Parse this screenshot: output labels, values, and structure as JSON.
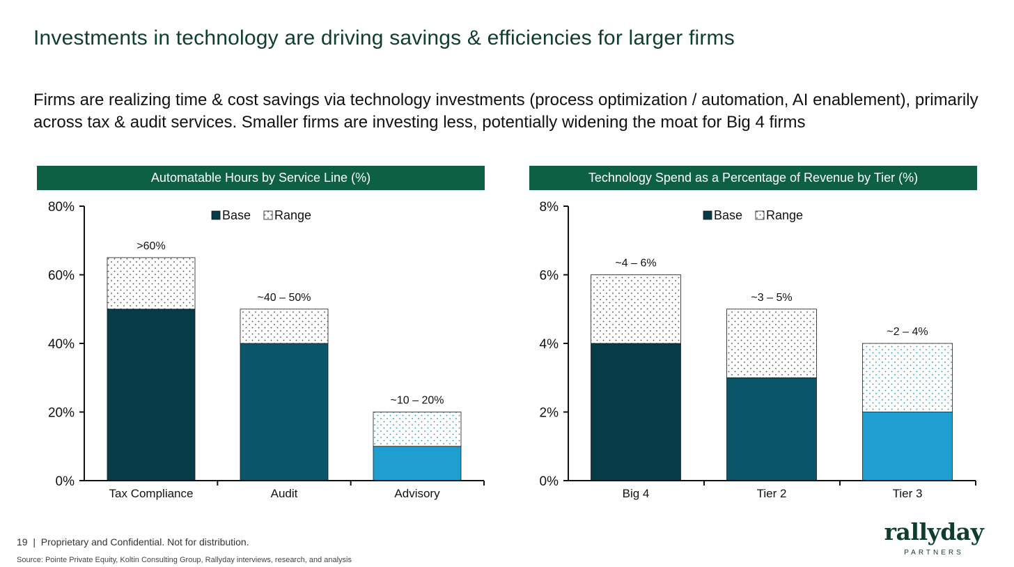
{
  "title": "Investments in technology are driving savings & efficiencies for larger firms",
  "subtitle": "Firms are realizing time & cost savings via technology investments (process optimization / automation, AI enablement), primarily across tax & audit services. Smaller firms are investing less, potentially widening the moat for Big 4 firms",
  "footer": {
    "page_number": "19",
    "confidential": "Proprietary and Confidential. Not for distribution.",
    "source": "Source: Pointe Private Equity, Koltin Consulting Group, Rallyday interviews, research, and analysis"
  },
  "logo": {
    "name": "rallyday",
    "tagline": "PARTNERS"
  },
  "colors": {
    "header_bg": "#0e6045",
    "title": "#0f3d2e",
    "dark": "#063b47",
    "mid": "#0b5569",
    "light": "#1e9fd0"
  },
  "chart_data": [
    {
      "type": "bar",
      "stacked": true,
      "title": "Automatable Hours by Service Line (%)",
      "categories": [
        "Tax Compliance",
        "Audit",
        "Advisory"
      ],
      "series": [
        {
          "name": "Base",
          "values": [
            50,
            40,
            10
          ]
        },
        {
          "name": "Range",
          "values": [
            15,
            10,
            10
          ]
        }
      ],
      "bar_labels": [
        ">60%",
        "~40 – 50%",
        "~10 – 20%"
      ],
      "ylim": [
        0,
        80
      ],
      "yticks": [
        0,
        20,
        40,
        60,
        80
      ],
      "tick_suffix": "%",
      "legend": [
        "Base",
        "Range"
      ],
      "legend_position": "top-center",
      "grid": false
    },
    {
      "type": "bar",
      "stacked": true,
      "title": "Technology Spend as a Percentage of Revenue by Tier (%)",
      "categories": [
        "Big 4",
        "Tier 2",
        "Tier 3"
      ],
      "series": [
        {
          "name": "Base",
          "values": [
            4,
            3,
            2
          ]
        },
        {
          "name": "Range",
          "values": [
            2,
            2,
            2
          ]
        }
      ],
      "bar_labels": [
        "~4 – 6%",
        "~3 – 5%",
        "~2 – 4%"
      ],
      "ylim": [
        0,
        8
      ],
      "yticks": [
        0,
        2,
        4,
        6,
        8
      ],
      "tick_suffix": "%",
      "legend": [
        "Base",
        "Range"
      ],
      "legend_position": "top-center",
      "grid": false
    }
  ]
}
